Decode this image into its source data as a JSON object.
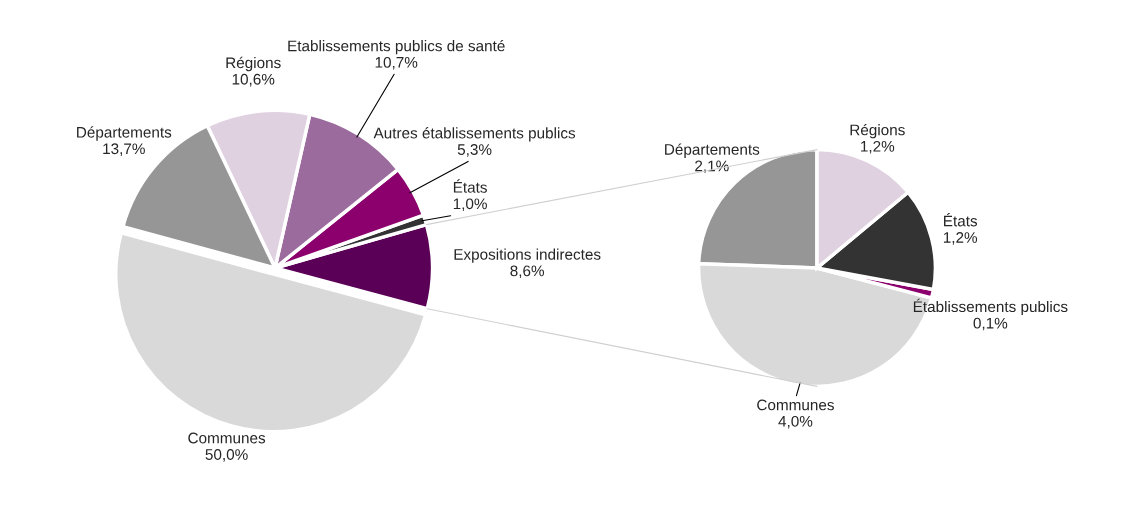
{
  "chart_data": [
    {
      "type": "pie",
      "categories": [
        "Expositions indirectes",
        "États",
        "Autres établissements publics",
        "Etablissements publics de santé",
        "Régions",
        "Départements",
        "Communes"
      ],
      "values": [
        8.6,
        1.0,
        5.3,
        10.7,
        10.6,
        13.7,
        50.0
      ],
      "colors": [
        "#5b0057",
        "#333333",
        "#8c006e",
        "#9c6b9e",
        "#e0d1e0",
        "#969696",
        "#d9d9d9"
      ],
      "value_labels": [
        "8,6%",
        "1,0%",
        "5,3%",
        "10,7%",
        "10,6%",
        "13,7%",
        "50,0%"
      ]
    },
    {
      "type": "pie",
      "categories": [
        "Départements",
        "Communes",
        "Établissements publics",
        "États",
        "Régions"
      ],
      "values": [
        2.1,
        4.0,
        0.1,
        1.2,
        1.2
      ],
      "colors": [
        "#969696",
        "#d9d9d9",
        "#8c006e",
        "#333333",
        "#e0d1e0"
      ],
      "value_labels": [
        "2,1%",
        "4,0%",
        "0,1%",
        "1,2%",
        "1,2%"
      ]
    }
  ]
}
